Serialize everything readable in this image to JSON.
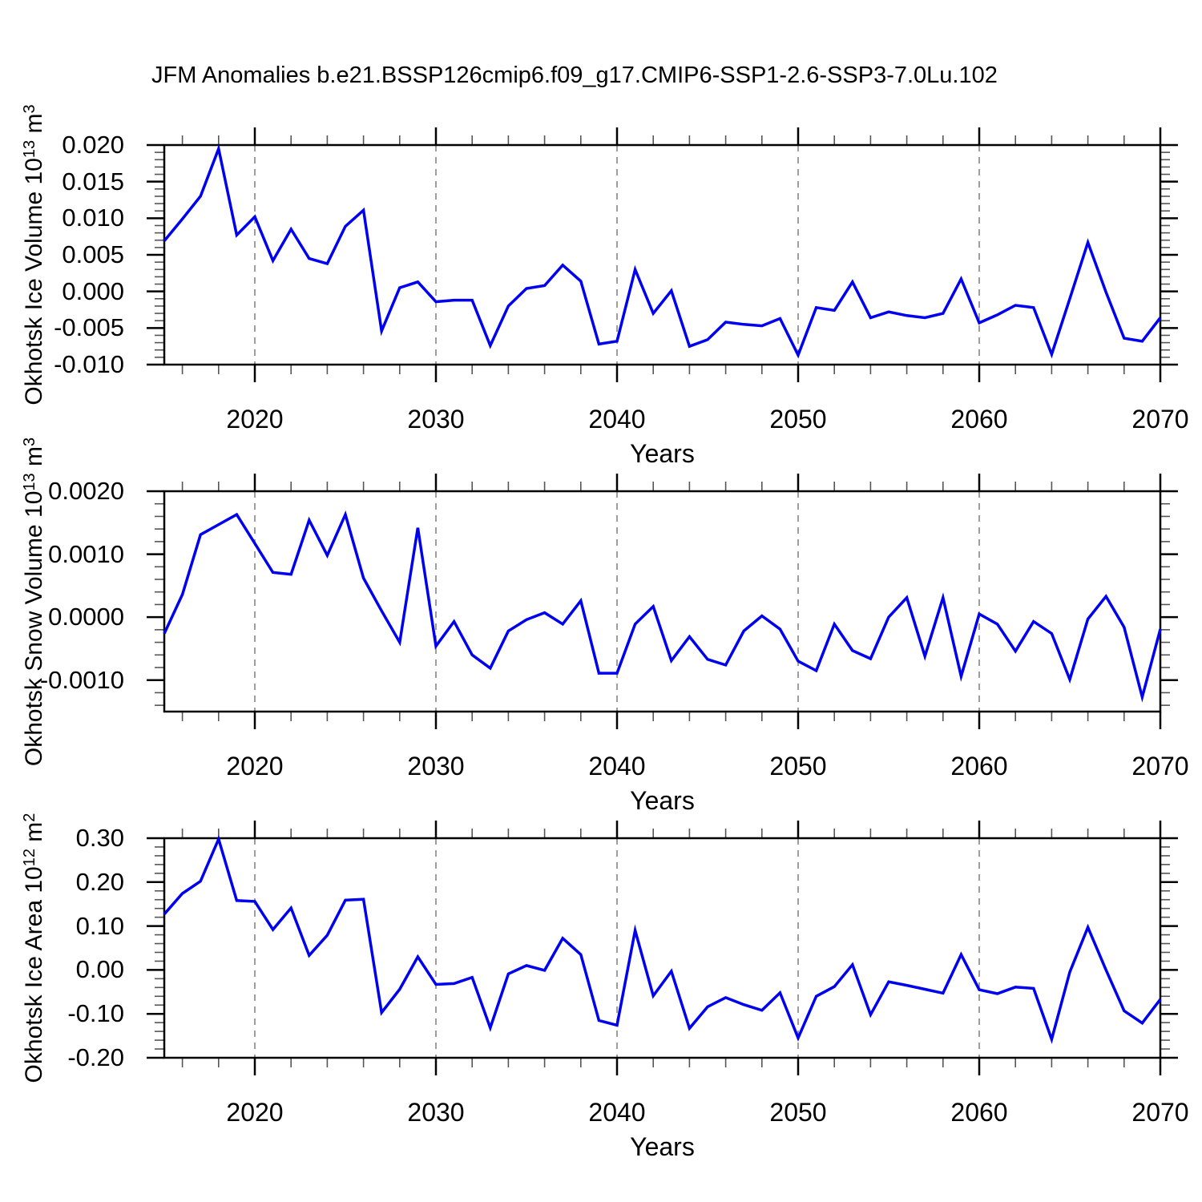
{
  "title": "JFM Anomalies b.e21.BSSP126cmip6.f09_g17.CMIP6-SSP1-2.6-SSP3-7.0Lu.102",
  "xlabel": "Years",
  "colors": {
    "line": "#0000f0",
    "grid": "#7f7f7f",
    "frame": "#000000",
    "major_tick": "#000000",
    "minor_tick": "#555555",
    "text": "#000000"
  },
  "x_axis": {
    "start": 2015,
    "end": 2070,
    "major_ticks": [
      2020,
      2030,
      2040,
      2050,
      2060,
      2070
    ],
    "minor_step": 2,
    "gridline_ticks": [
      2020,
      2030,
      2040,
      2050,
      2060
    ]
  },
  "chart_data": [
    {
      "type": "line",
      "id": "ice-volume",
      "ylabel": "Okhotsk Ice Volume 10^13 m^3",
      "ylabel_segments": [
        {
          "text": "Okhotsk Ice Volume 10"
        },
        {
          "text": "13",
          "sup": true
        },
        {
          "text": " m"
        },
        {
          "text": "3",
          "sup": true
        }
      ],
      "ylim": [
        -0.01,
        0.02
      ],
      "y_minor_step": 0.001,
      "y_major_ticks": [
        {
          "v": 0.02,
          "label": "0.020"
        },
        {
          "v": 0.015,
          "label": "0.015"
        },
        {
          "v": 0.01,
          "label": "0.010"
        },
        {
          "v": 0.005,
          "label": "0.005"
        },
        {
          "v": 0.0,
          "label": "0.000"
        },
        {
          "v": -0.005,
          "label": "-0.005"
        },
        {
          "v": -0.01,
          "label": "-0.010"
        }
      ],
      "x_years_start": 2015,
      "values": [
        0.0069,
        0.0099,
        0.013,
        0.0195,
        0.0077,
        0.0102,
        0.0042,
        0.0085,
        0.0045,
        0.0038,
        0.0089,
        0.0111,
        -0.0054,
        0.0005,
        0.0013,
        -0.0014,
        -0.0012,
        -0.0012,
        -0.0074,
        -0.002,
        0.0004,
        0.0008,
        0.0036,
        0.0014,
        -0.0072,
        -0.0068,
        0.003,
        -0.003,
        0.0001,
        -0.0075,
        -0.0066,
        -0.0042,
        -0.0045,
        -0.0047,
        -0.0037,
        -0.0087,
        -0.0022,
        -0.0026,
        0.0013,
        -0.0036,
        -0.0028,
        -0.0033,
        -0.0036,
        -0.003,
        0.0017,
        -0.0043,
        -0.0032,
        -0.0019,
        -0.0022,
        -0.0086,
        -0.001,
        0.0067,
        -0.0001,
        -0.0064,
        -0.0068,
        -0.0036
      ]
    },
    {
      "type": "line",
      "id": "snow-volume",
      "ylabel": "Okhotsk Snow Volume 10^13 m^3",
      "ylabel_segments": [
        {
          "text": "Okhotsk Snow Volume 10"
        },
        {
          "text": "13",
          "sup": true
        },
        {
          "text": " m"
        },
        {
          "text": "3",
          "sup": true
        }
      ],
      "ylim": [
        -0.0015,
        0.002
      ],
      "y_minor_step": 0.0002,
      "y_major_ticks": [
        {
          "v": 0.002,
          "label": "0.0020"
        },
        {
          "v": 0.001,
          "label": "0.0010"
        },
        {
          "v": 0.0,
          "label": "0.0000"
        },
        {
          "v": -0.001,
          "label": "-0.0010"
        }
      ],
      "x_years_start": 2015,
      "values": [
        -0.00026,
        0.00036,
        0.00131,
        0.00147,
        0.00163,
        0.00117,
        0.00071,
        0.00068,
        0.00154,
        0.00098,
        0.00163,
        0.00062,
        0.0001,
        -0.0004,
        0.00142,
        -0.00046,
        -7e-05,
        -0.0006,
        -0.00081,
        -0.00022,
        -4e-05,
        7e-05,
        -0.00011,
        0.00026,
        -0.00089,
        -0.00089,
        -0.00011,
        0.00017,
        -0.00069,
        -0.00031,
        -0.00067,
        -0.00076,
        -0.00022,
        2e-05,
        -0.00019,
        -0.0007,
        -0.00085,
        -0.00011,
        -0.00053,
        -0.00066,
        0.0,
        0.00031,
        -0.00062,
        0.00031,
        -0.00094,
        5e-05,
        -0.00011,
        -0.00054,
        -7e-05,
        -0.00026,
        -0.00099,
        -3e-05,
        0.00033,
        -0.00016,
        -0.00127,
        -0.00019
      ]
    },
    {
      "type": "line",
      "id": "ice-area",
      "ylabel": "Okhotsk Ice Area 10^12 m^2",
      "ylabel_segments": [
        {
          "text": "Okhotsk Ice Area 10"
        },
        {
          "text": "12",
          "sup": true
        },
        {
          "text": " m"
        },
        {
          "text": "2",
          "sup": true
        }
      ],
      "ylim": [
        -0.2,
        0.3
      ],
      "y_minor_step": 0.02,
      "y_major_ticks": [
        {
          "v": 0.3,
          "label": "0.30"
        },
        {
          "v": 0.2,
          "label": "0.20"
        },
        {
          "v": 0.1,
          "label": "0.10"
        },
        {
          "v": 0.0,
          "label": "0.00"
        },
        {
          "v": -0.1,
          "label": "-0.10"
        },
        {
          "v": -0.2,
          "label": "-0.20"
        }
      ],
      "x_years_start": 2015,
      "values": [
        0.127,
        0.174,
        0.202,
        0.298,
        0.158,
        0.156,
        0.092,
        0.141,
        0.033,
        0.079,
        0.159,
        0.161,
        -0.097,
        -0.044,
        0.03,
        -0.033,
        -0.031,
        -0.017,
        -0.132,
        -0.009,
        0.01,
        -0.001,
        0.072,
        0.035,
        -0.115,
        -0.126,
        0.09,
        -0.059,
        -0.003,
        -0.133,
        -0.084,
        -0.063,
        -0.079,
        -0.092,
        -0.052,
        -0.155,
        -0.06,
        -0.038,
        0.012,
        -0.102,
        -0.027,
        -0.035,
        -0.044,
        -0.053,
        0.035,
        -0.045,
        -0.054,
        -0.039,
        -0.042,
        -0.158,
        -0.005,
        0.097,
        0.0,
        -0.093,
        -0.121,
        -0.067
      ]
    }
  ]
}
